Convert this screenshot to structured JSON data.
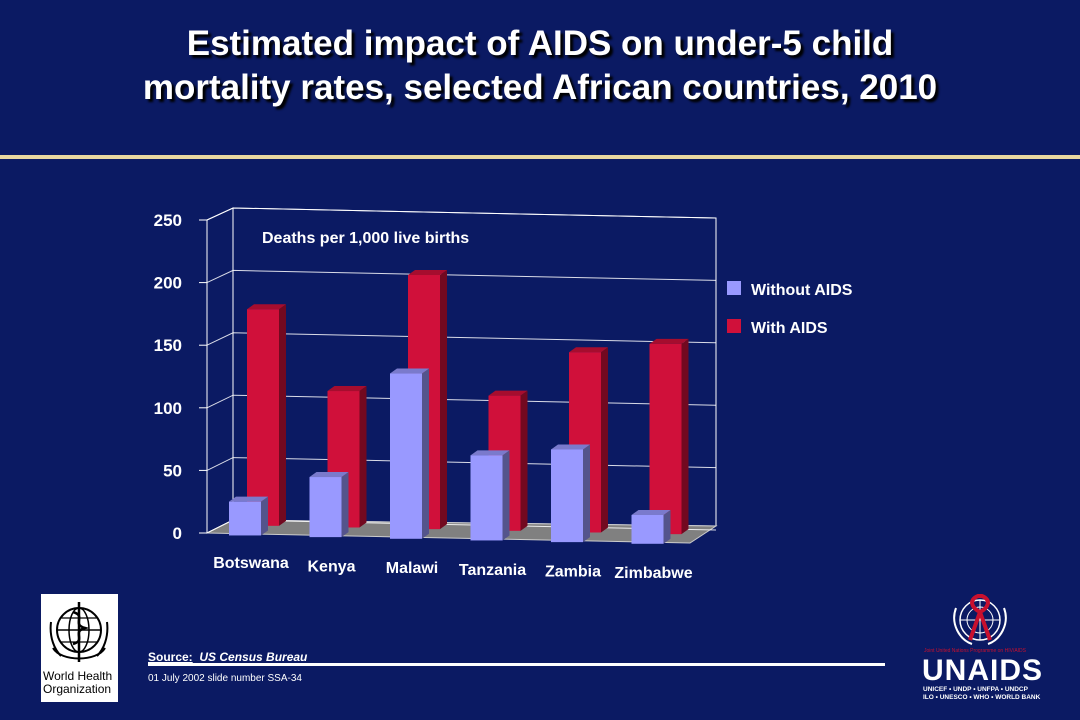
{
  "title_line1": "Estimated impact of AIDS on under-5 child",
  "title_line2": "mortality rates, selected African countries, 2010",
  "chart_data": {
    "type": "bar",
    "title": "Estimated impact of AIDS on under-5 child mortality rates, selected African countries, 2010",
    "unit_label": "Deaths per 1,000 live births",
    "categories": [
      "Botswana",
      "Kenya",
      "Malawi",
      "Tanzania",
      "Zambia",
      "Zimbabwe"
    ],
    "series": [
      {
        "name": "Without AIDS",
        "values": [
          27,
          48,
          132,
          68,
          74,
          23
        ],
        "color": "#9999ff"
      },
      {
        "name": "With AIDS",
        "values": [
          173,
          109,
          203,
          108,
          144,
          152
        ],
        "color": "#d0103a"
      }
    ],
    "yticks": [
      "0",
      "50",
      "100",
      "150",
      "200",
      "250"
    ],
    "ylim": [
      0,
      250
    ],
    "grid": true,
    "legend_position": "right"
  },
  "source_label": "Source:",
  "source_text": "US Census Bureau",
  "footer_note": "01 July 2002 slide number SSA-34",
  "who_logo_text_1": "World Health",
  "who_logo_text_2": "Organization",
  "unaids_tagline": "Joint United Nations Programme on HIV/AIDS",
  "unaids_name": "UNAIDS",
  "unaids_members_1": "UNICEF • UNDP • UNFPA • UNDCP",
  "unaids_members_2": "ILO • UNESCO • WHO • WORLD BANK",
  "colors": {
    "background": "#0b1a63",
    "rule": "#e9d8a0",
    "floor": "#808080"
  }
}
